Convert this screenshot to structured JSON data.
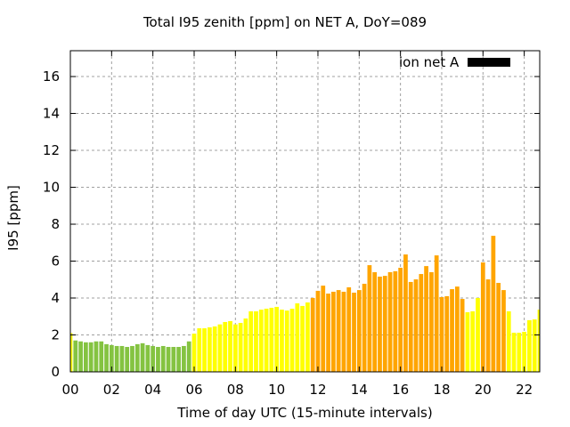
{
  "chart_data": {
    "type": "bar",
    "title": "Total I95 zenith [ppm] on NET A, DoY=089",
    "xlabel": "Time of day UTC (15-minute intervals)",
    "ylabel": "I95 [ppm]",
    "legend": {
      "label": "ion net A",
      "color": "#000000",
      "position": "top-right"
    },
    "grid": true,
    "x_unit": "hours UTC",
    "interval_hours": 0.25,
    "xlim": [
      0,
      22.75
    ],
    "ylim": [
      0,
      17.4
    ],
    "xticks": [
      "00",
      "02",
      "04",
      "06",
      "08",
      "10",
      "12",
      "14",
      "16",
      "18",
      "20",
      "22"
    ],
    "xtick_values": [
      0,
      2,
      4,
      6,
      8,
      10,
      12,
      14,
      16,
      18,
      20,
      22
    ],
    "yticks": [
      0,
      2,
      4,
      6,
      8,
      10,
      12,
      14,
      16
    ],
    "color_classes": {
      "green": "#84c341",
      "yellow": "#ffff00",
      "orange": "#ffa500"
    },
    "values": [
      2.1,
      1.7,
      1.65,
      1.6,
      1.6,
      1.65,
      1.65,
      1.5,
      1.45,
      1.4,
      1.4,
      1.35,
      1.4,
      1.5,
      1.55,
      1.45,
      1.4,
      1.35,
      1.4,
      1.35,
      1.35,
      1.35,
      1.4,
      1.65,
      2.07,
      2.36,
      2.36,
      2.41,
      2.46,
      2.57,
      2.7,
      2.75,
      2.57,
      2.65,
      2.89,
      3.28,
      3.28,
      3.37,
      3.42,
      3.47,
      3.52,
      3.37,
      3.32,
      3.42,
      3.71,
      3.57,
      3.76,
      4.0,
      4.39,
      4.67,
      4.24,
      4.34,
      4.43,
      4.34,
      4.58,
      4.29,
      4.43,
      4.77,
      5.78,
      5.4,
      5.16,
      5.2,
      5.4,
      5.45,
      5.64,
      6.36,
      4.87,
      5.01,
      5.3,
      5.73,
      5.4,
      6.31,
      4.05,
      4.1,
      4.48,
      4.62,
      3.95,
      3.23,
      3.28,
      4.0,
      5.93,
      5.01,
      7.37,
      4.82,
      4.43,
      3.28,
      2.12,
      2.12,
      2.17,
      2.8,
      2.84,
      3.37
    ],
    "colors": [
      "yellow",
      "green",
      "green",
      "green",
      "green",
      "green",
      "green",
      "green",
      "green",
      "green",
      "green",
      "green",
      "green",
      "green",
      "green",
      "green",
      "green",
      "green",
      "green",
      "green",
      "green",
      "green",
      "green",
      "green",
      "yellow",
      "yellow",
      "yellow",
      "yellow",
      "yellow",
      "yellow",
      "yellow",
      "yellow",
      "yellow",
      "yellow",
      "yellow",
      "yellow",
      "yellow",
      "yellow",
      "yellow",
      "yellow",
      "yellow",
      "yellow",
      "yellow",
      "yellow",
      "yellow",
      "yellow",
      "yellow",
      "orange",
      "orange",
      "orange",
      "orange",
      "orange",
      "orange",
      "orange",
      "orange",
      "orange",
      "orange",
      "orange",
      "orange",
      "orange",
      "orange",
      "orange",
      "orange",
      "orange",
      "orange",
      "orange",
      "orange",
      "orange",
      "orange",
      "orange",
      "orange",
      "orange",
      "orange",
      "orange",
      "orange",
      "orange",
      "orange",
      "yellow",
      "yellow",
      "yellow",
      "orange",
      "orange",
      "orange",
      "orange",
      "orange",
      "yellow",
      "yellow",
      "yellow",
      "yellow",
      "yellow",
      "yellow",
      "yellow"
    ]
  }
}
